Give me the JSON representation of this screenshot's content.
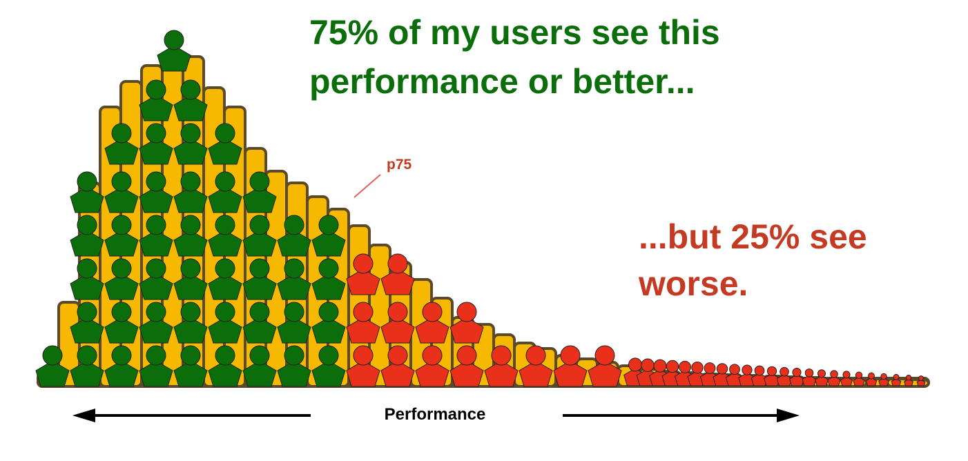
{
  "headline": {
    "lines": [
      "75% of my users see this",
      "performance or better..."
    ]
  },
  "subline": {
    "lines": [
      "...but 25% see",
      "worse."
    ]
  },
  "marker": {
    "label": "p75"
  },
  "axis": {
    "label": "Performance"
  }
}
